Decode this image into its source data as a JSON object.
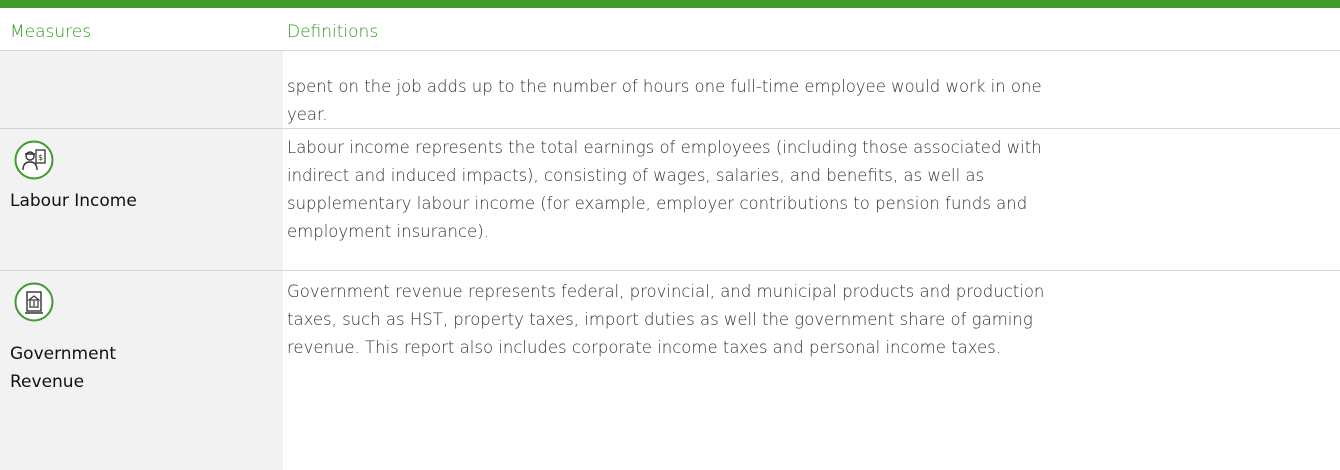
{
  "table": {
    "header": [
      "Measures",
      "Definitions"
    ],
    "rows": [
      {
        "measure": [],
        "definition_lines": [
          "spent on the job adds up to the number of hours one full-time employee would work in one",
          "year."
        ]
      },
      {
        "measure": [
          "Labour Income"
        ],
        "definition_lines": [
          "Labour income represents the total earnings of employees (including those associated with",
          "indirect and induced impacts), consisting of wages, salaries, and benefits, as well as",
          "supplementary labour income (for example, employer contributions to pension funds and",
          "employment insurance)."
        ]
      },
      {
        "measure": [
          "Government",
          "Revenue"
        ],
        "definition_lines": [
          "Government revenue represents  federal, provincial, and municipal products and production",
          "taxes, such as HST, property taxes, import duties as well the government share of gaming",
          "revenue. This report also includes corporate income taxes and personal income taxes."
        ]
      }
    ]
  }
}
